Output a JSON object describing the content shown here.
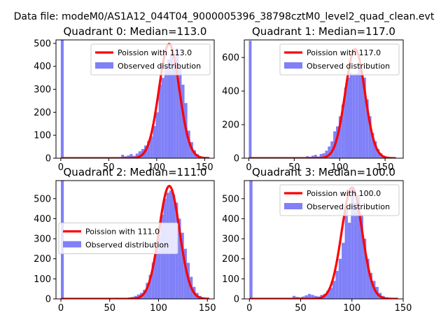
{
  "figure": {
    "title": "Data file: modeM0/AS1A12_044T04_9000005396_38798cztM0_level2_quad_clean.evt"
  },
  "chart_data": [
    {
      "type": "histogram",
      "title": "Quadrant 0: Median=113.0",
      "median": 113.0,
      "xlim": [
        -5,
        160
      ],
      "ylim": [
        0,
        515
      ],
      "xticks": [
        0,
        50,
        100,
        150
      ],
      "yticks": [
        0,
        100,
        200,
        300,
        400,
        500
      ],
      "legend_position": "top-right",
      "series": [
        {
          "name": "Poission with 113.0",
          "kind": "line",
          "color": "#ff0000",
          "mu": 113.0,
          "peak": 497,
          "sigma": 10.6,
          "x_range": [
            0,
            155
          ]
        },
        {
          "name": "Observed distribution",
          "kind": "bars",
          "color": "#8080f8",
          "bin_width": 3,
          "bins": [
            [
              0,
              515
            ],
            [
              63,
              15
            ],
            [
              66,
              8
            ],
            [
              69,
              12
            ],
            [
              72,
              18
            ],
            [
              75,
              10
            ],
            [
              78,
              20
            ],
            [
              81,
              30
            ],
            [
              84,
              40
            ],
            [
              87,
              55
            ],
            [
              90,
              75
            ],
            [
              93,
              95
            ],
            [
              96,
              140
            ],
            [
              99,
              200
            ],
            [
              102,
              320
            ],
            [
              105,
              350
            ],
            [
              108,
              400
            ],
            [
              111,
              430
            ],
            [
              114,
              450
            ],
            [
              117,
              420
            ],
            [
              120,
              480
            ],
            [
              123,
              390
            ],
            [
              126,
              320
            ],
            [
              129,
              240
            ],
            [
              132,
              120
            ],
            [
              135,
              70
            ],
            [
              138,
              35
            ],
            [
              141,
              18
            ],
            [
              144,
              8
            ],
            [
              147,
              5
            ],
            [
              150,
              3
            ]
          ]
        }
      ]
    },
    {
      "type": "histogram",
      "title": "Quadrant 1: Median=117.0",
      "median": 117.0,
      "xlim": [
        -5,
        170
      ],
      "ylim": [
        0,
        705
      ],
      "xticks": [
        0,
        50,
        100,
        150
      ],
      "yticks": [
        0,
        200,
        400,
        600
      ],
      "legend_position": "top-right",
      "series": [
        {
          "name": "Poission with 117.0",
          "kind": "line",
          "color": "#ff0000",
          "mu": 117.0,
          "peak": 650,
          "sigma": 10.8,
          "x_range": [
            0,
            162
          ]
        },
        {
          "name": "Observed distribution",
          "kind": "bars",
          "color": "#8080f8",
          "bin_width": 3,
          "bins": [
            [
              0,
              700
            ],
            [
              63,
              12
            ],
            [
              66,
              8
            ],
            [
              69,
              15
            ],
            [
              72,
              20
            ],
            [
              75,
              10
            ],
            [
              78,
              25
            ],
            [
              81,
              30
            ],
            [
              84,
              45
            ],
            [
              87,
              70
            ],
            [
              90,
              100
            ],
            [
              93,
              160
            ],
            [
              96,
              190
            ],
            [
              99,
              250
            ],
            [
              102,
              320
            ],
            [
              105,
              420
            ],
            [
              108,
              480
            ],
            [
              111,
              510
            ],
            [
              114,
              500
            ],
            [
              117,
              505
            ],
            [
              120,
              560
            ],
            [
              123,
              520
            ],
            [
              126,
              480
            ],
            [
              129,
              350
            ],
            [
              132,
              250
            ],
            [
              135,
              150
            ],
            [
              138,
              100
            ],
            [
              141,
              55
            ],
            [
              144,
              30
            ],
            [
              147,
              15
            ],
            [
              150,
              8
            ],
            [
              153,
              5
            ],
            [
              156,
              3
            ],
            [
              159,
              2
            ]
          ]
        }
      ]
    },
    {
      "type": "histogram",
      "title": "Quadrant 2: Median=111.0",
      "median": 111.0,
      "xlim": [
        -5,
        157
      ],
      "ylim": [
        0,
        590
      ],
      "xticks": [
        0,
        50,
        100,
        150
      ],
      "yticks": [
        0,
        100,
        200,
        300,
        400,
        500
      ],
      "legend_position": "center-left",
      "series": [
        {
          "name": "Poission with 111.0",
          "kind": "line",
          "color": "#ff0000",
          "mu": 111.0,
          "peak": 563,
          "sigma": 10.5,
          "x_range": [
            0,
            152
          ]
        },
        {
          "name": "Observed distribution",
          "kind": "bars",
          "color": "#8080f8",
          "bin_width": 3,
          "bins": [
            [
              0,
              590
            ],
            [
              66,
              5
            ],
            [
              69,
              8
            ],
            [
              72,
              10
            ],
            [
              75,
              15
            ],
            [
              78,
              22
            ],
            [
              81,
              30
            ],
            [
              84,
              45
            ],
            [
              87,
              80
            ],
            [
              90,
              120
            ],
            [
              93,
              180
            ],
            [
              96,
              250
            ],
            [
              99,
              320
            ],
            [
              102,
              420
            ],
            [
              105,
              500
            ],
            [
              108,
              530
            ],
            [
              111,
              540
            ],
            [
              114,
              520
            ],
            [
              117,
              480
            ],
            [
              120,
              400
            ],
            [
              123,
              330
            ],
            [
              126,
              250
            ],
            [
              129,
              180
            ],
            [
              132,
              110
            ],
            [
              135,
              60
            ],
            [
              138,
              30
            ],
            [
              141,
              15
            ],
            [
              144,
              8
            ],
            [
              147,
              4
            ]
          ]
        }
      ]
    },
    {
      "type": "histogram",
      "title": "Quadrant 3: Median=100.0",
      "median": 100.0,
      "xlim": [
        -5,
        150
      ],
      "ylim": [
        0,
        590
      ],
      "xticks": [
        0,
        50,
        100,
        150
      ],
      "yticks": [
        0,
        100,
        200,
        300,
        400,
        500
      ],
      "legend_position": "top-right",
      "series": [
        {
          "name": "Poission with 100.0",
          "kind": "line",
          "color": "#ff0000",
          "mu": 100.0,
          "peak": 555,
          "sigma": 10.0,
          "x_range": [
            0,
            145
          ]
        },
        {
          "name": "Observed distribution",
          "kind": "bars",
          "color": "#8080f8",
          "bin_width": 3,
          "bins": [
            [
              0,
              590
            ],
            [
              42,
              15
            ],
            [
              45,
              10
            ],
            [
              48,
              8
            ],
            [
              51,
              12
            ],
            [
              54,
              18
            ],
            [
              57,
              25
            ],
            [
              60,
              20
            ],
            [
              63,
              15
            ],
            [
              66,
              12
            ],
            [
              69,
              20
            ],
            [
              72,
              25
            ],
            [
              75,
              40
            ],
            [
              78,
              55
            ],
            [
              81,
              90
            ],
            [
              84,
              140
            ],
            [
              87,
              200
            ],
            [
              90,
              280
            ],
            [
              93,
              450
            ],
            [
              96,
              380
            ],
            [
              99,
              560
            ],
            [
              102,
              480
            ],
            [
              105,
              520
            ],
            [
              108,
              420
            ],
            [
              111,
              300
            ],
            [
              114,
              200
            ],
            [
              117,
              130
            ],
            [
              120,
              90
            ],
            [
              123,
              60
            ],
            [
              126,
              30
            ],
            [
              129,
              15
            ],
            [
              132,
              8
            ],
            [
              135,
              4
            ]
          ]
        }
      ]
    }
  ]
}
